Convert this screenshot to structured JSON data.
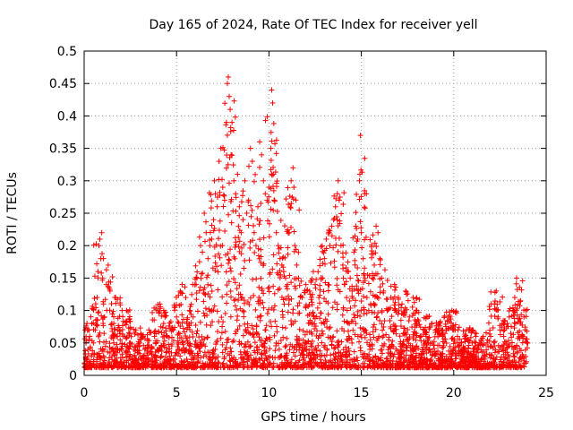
{
  "chart_data": {
    "type": "scatter",
    "title": "Day 165 of 2024, Rate Of TEC Index for receiver yell",
    "xlabel": "GPS time / hours",
    "ylabel": "ROTI / TECUs",
    "xlim": [
      0,
      25
    ],
    "ylim": [
      0,
      0.5
    ],
    "xticks": [
      0,
      5,
      10,
      15,
      20,
      25
    ],
    "yticks": [
      0,
      0.05,
      0.1,
      0.15,
      0.2,
      0.25,
      0.3,
      0.35,
      0.4,
      0.45,
      0.5
    ],
    "xtick_labels": [
      "0",
      "5",
      "10",
      "15",
      "20",
      "25"
    ],
    "ytick_labels": [
      "0",
      "0.05",
      "0.1",
      "0.15",
      "0.2",
      "0.25",
      "0.3",
      "0.35",
      "0.4",
      "0.45",
      "0.5"
    ],
    "grid": true,
    "marker": "+",
    "color": "#ff0000",
    "series": [
      {
        "name": "ROTI",
        "points": [
          [
            0.05,
            0.07
          ],
          [
            0.1,
            0.05
          ],
          [
            0.15,
            0.08
          ],
          [
            0.2,
            0.04
          ],
          [
            0.3,
            0.06
          ],
          [
            0.4,
            0.03
          ],
          [
            0.5,
            0.05
          ],
          [
            0.6,
            0.07
          ],
          [
            0.7,
            0.12
          ],
          [
            0.75,
            0.16
          ],
          [
            0.8,
            0.2
          ],
          [
            0.85,
            0.21
          ],
          [
            0.9,
            0.18
          ],
          [
            0.95,
            0.22
          ],
          [
            1.0,
            0.15
          ],
          [
            1.05,
            0.11
          ],
          [
            1.1,
            0.09
          ],
          [
            1.2,
            0.14
          ],
          [
            1.3,
            0.17
          ],
          [
            1.4,
            0.13
          ],
          [
            1.5,
            0.08
          ],
          [
            1.6,
            0.05
          ],
          [
            1.7,
            0.12
          ],
          [
            1.8,
            0.07
          ],
          [
            2.0,
            0.04
          ],
          [
            2.2,
            0.06
          ],
          [
            2.3,
            0.1
          ],
          [
            2.5,
            0.05
          ],
          [
            2.7,
            0.04
          ],
          [
            2.8,
            0.07
          ],
          [
            3.0,
            0.05
          ],
          [
            3.2,
            0.06
          ],
          [
            3.5,
            0.07
          ],
          [
            3.8,
            0.06
          ],
          [
            4.0,
            0.1
          ],
          [
            4.1,
            0.11
          ],
          [
            4.3,
            0.08
          ],
          [
            4.5,
            0.06
          ],
          [
            4.8,
            0.07
          ],
          [
            5.0,
            0.09
          ],
          [
            5.2,
            0.13
          ],
          [
            5.3,
            0.14
          ],
          [
            5.5,
            0.12
          ],
          [
            5.7,
            0.1
          ],
          [
            5.9,
            0.09
          ],
          [
            6.1,
            0.15
          ],
          [
            6.3,
            0.2
          ],
          [
            6.4,
            0.19
          ],
          [
            6.5,
            0.25
          ],
          [
            6.6,
            0.22
          ],
          [
            6.7,
            0.18
          ],
          [
            6.8,
            0.2
          ],
          [
            6.9,
            0.21
          ],
          [
            7.0,
            0.24
          ],
          [
            7.05,
            0.3
          ],
          [
            7.1,
            0.28
          ],
          [
            7.2,
            0.26
          ],
          [
            7.3,
            0.33
          ],
          [
            7.4,
            0.35
          ],
          [
            7.5,
            0.29
          ],
          [
            7.6,
            0.27
          ],
          [
            7.7,
            0.39
          ],
          [
            7.75,
            0.45
          ],
          [
            7.8,
            0.46
          ],
          [
            7.85,
            0.43
          ],
          [
            7.9,
            0.41
          ],
          [
            7.95,
            0.34
          ],
          [
            8.0,
            0.39
          ],
          [
            8.1,
            0.3
          ],
          [
            8.2,
            0.28
          ],
          [
            8.3,
            0.31
          ],
          [
            8.4,
            0.26
          ],
          [
            8.5,
            0.22
          ],
          [
            8.6,
            0.24
          ],
          [
            8.7,
            0.3
          ],
          [
            8.8,
            0.25
          ],
          [
            8.9,
            0.27
          ],
          [
            9.0,
            0.35
          ],
          [
            9.1,
            0.33
          ],
          [
            9.2,
            0.22
          ],
          [
            9.3,
            0.2
          ],
          [
            9.4,
            0.26
          ],
          [
            9.5,
            0.36
          ],
          [
            9.6,
            0.34
          ],
          [
            9.7,
            0.3
          ],
          [
            9.8,
            0.28
          ],
          [
            9.9,
            0.27
          ],
          [
            10.0,
            0.29
          ],
          [
            10.1,
            0.35
          ],
          [
            10.15,
            0.44
          ],
          [
            10.2,
            0.42
          ],
          [
            10.3,
            0.27
          ],
          [
            10.4,
            0.22
          ],
          [
            10.5,
            0.2
          ],
          [
            10.6,
            0.18
          ],
          [
            10.7,
            0.17
          ],
          [
            10.8,
            0.16
          ],
          [
            10.9,
            0.15
          ],
          [
            11.0,
            0.14
          ],
          [
            11.1,
            0.22
          ],
          [
            11.2,
            0.3
          ],
          [
            11.3,
            0.32
          ],
          [
            11.35,
            0.29
          ],
          [
            11.4,
            0.2
          ],
          [
            11.5,
            0.17
          ],
          [
            11.6,
            0.15
          ],
          [
            11.8,
            0.12
          ],
          [
            12.0,
            0.14
          ],
          [
            12.2,
            0.13
          ],
          [
            12.4,
            0.16
          ],
          [
            12.5,
            0.14
          ],
          [
            12.7,
            0.12
          ],
          [
            12.9,
            0.15
          ],
          [
            13.0,
            0.18
          ],
          [
            13.1,
            0.21
          ],
          [
            13.2,
            0.14
          ],
          [
            13.3,
            0.2
          ],
          [
            13.4,
            0.23
          ],
          [
            13.5,
            0.24
          ],
          [
            13.6,
            0.26
          ],
          [
            13.7,
            0.28
          ],
          [
            13.75,
            0.3
          ],
          [
            13.8,
            0.27
          ],
          [
            13.9,
            0.2
          ],
          [
            14.0,
            0.17
          ],
          [
            14.1,
            0.14
          ],
          [
            14.2,
            0.12
          ],
          [
            14.3,
            0.16
          ],
          [
            14.4,
            0.15
          ],
          [
            14.5,
            0.13
          ],
          [
            14.6,
            0.19
          ],
          [
            14.7,
            0.23
          ],
          [
            14.8,
            0.21
          ],
          [
            14.9,
            0.3
          ],
          [
            14.95,
            0.37
          ],
          [
            15.0,
            0.22
          ],
          [
            15.1,
            0.18
          ],
          [
            15.2,
            0.15
          ],
          [
            15.3,
            0.12
          ],
          [
            15.4,
            0.1
          ],
          [
            15.5,
            0.11
          ],
          [
            15.6,
            0.15
          ],
          [
            15.7,
            0.17
          ],
          [
            15.8,
            0.23
          ],
          [
            15.9,
            0.22
          ],
          [
            16.0,
            0.18
          ],
          [
            16.1,
            0.15
          ],
          [
            16.2,
            0.13
          ],
          [
            16.4,
            0.1
          ],
          [
            16.6,
            0.12
          ],
          [
            16.8,
            0.14
          ],
          [
            17.0,
            0.12
          ],
          [
            17.2,
            0.11
          ],
          [
            17.4,
            0.13
          ],
          [
            17.6,
            0.09
          ],
          [
            17.8,
            0.12
          ],
          [
            18.0,
            0.08
          ],
          [
            18.2,
            0.06
          ],
          [
            18.4,
            0.07
          ],
          [
            18.6,
            0.09
          ],
          [
            18.8,
            0.08
          ],
          [
            19.0,
            0.07
          ],
          [
            19.2,
            0.08
          ],
          [
            19.4,
            0.06
          ],
          [
            19.6,
            0.07
          ],
          [
            19.8,
            0.09
          ],
          [
            19.9,
            0.1
          ],
          [
            20.0,
            0.07
          ],
          [
            20.2,
            0.06
          ],
          [
            20.4,
            0.05
          ],
          [
            20.6,
            0.06
          ],
          [
            20.8,
            0.07
          ],
          [
            21.0,
            0.05
          ],
          [
            21.2,
            0.06
          ],
          [
            21.4,
            0.05
          ],
          [
            21.6,
            0.06
          ],
          [
            21.8,
            0.05
          ],
          [
            22.0,
            0.06
          ],
          [
            22.2,
            0.11
          ],
          [
            22.3,
            0.13
          ],
          [
            22.4,
            0.09
          ],
          [
            22.5,
            0.07
          ],
          [
            22.7,
            0.06
          ],
          [
            22.9,
            0.08
          ],
          [
            23.0,
            0.09
          ],
          [
            23.2,
            0.1
          ],
          [
            23.3,
            0.12
          ],
          [
            23.4,
            0.15
          ],
          [
            23.5,
            0.11
          ],
          [
            23.6,
            0.08
          ],
          [
            23.7,
            0.06
          ],
          [
            23.8,
            0.09
          ],
          [
            23.9,
            0.1
          ],
          [
            24.0,
            0.05
          ]
        ]
      }
    ]
  }
}
